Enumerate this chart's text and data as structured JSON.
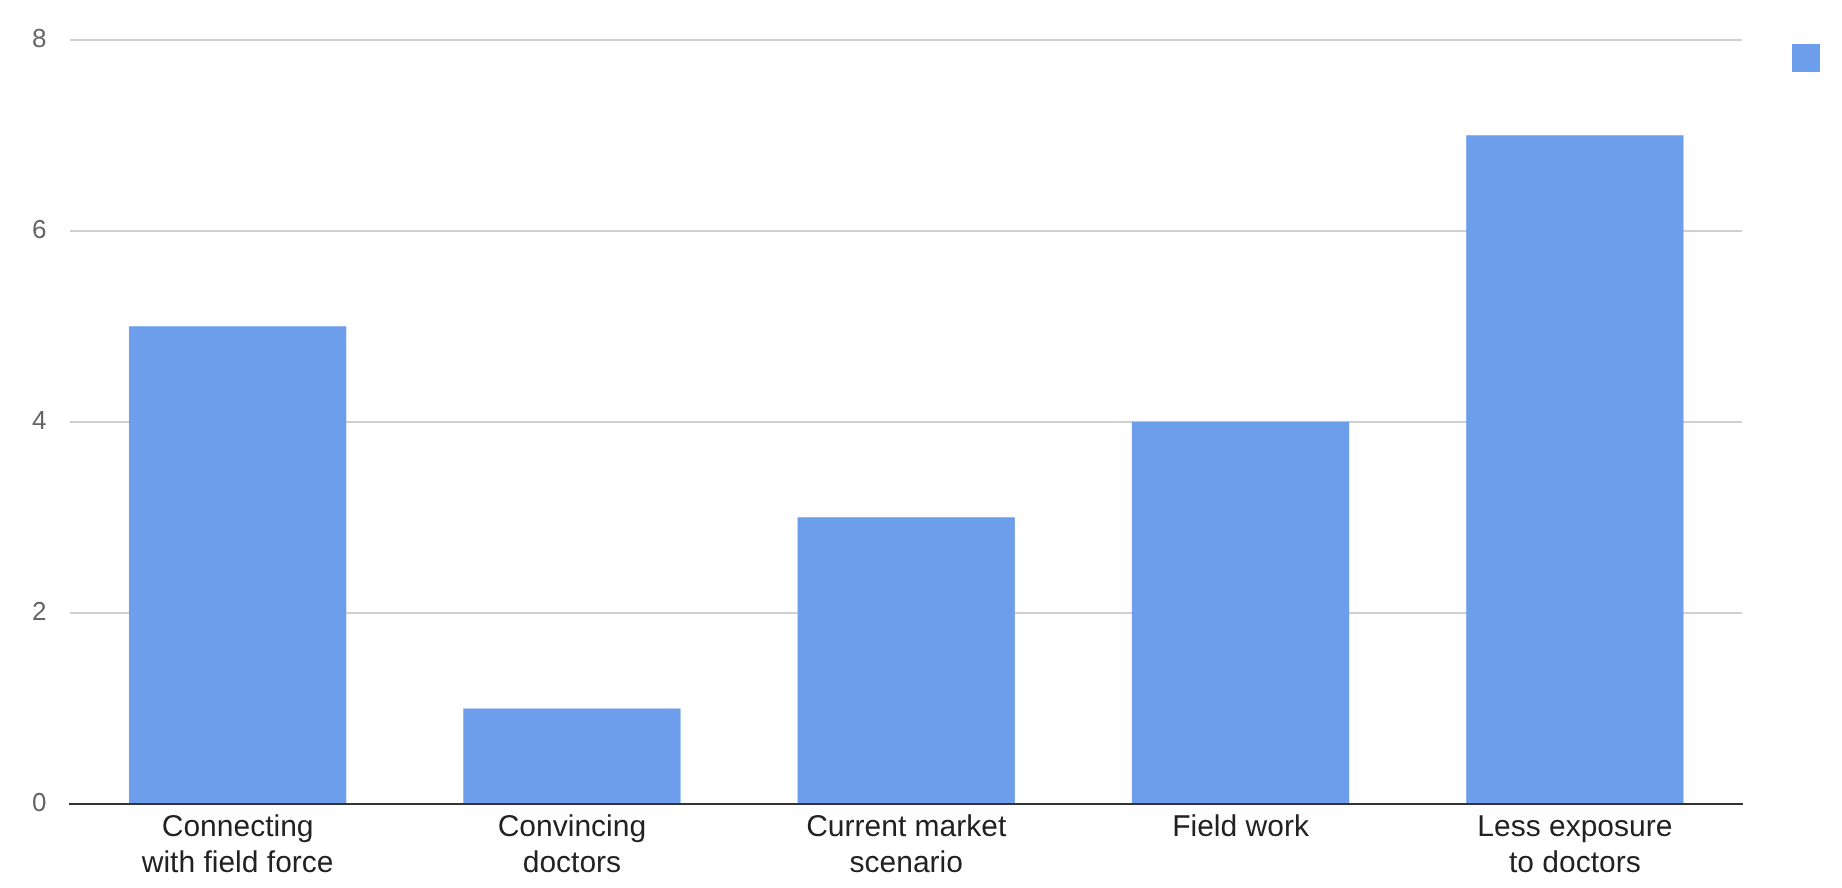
{
  "chart_data": {
    "type": "bar",
    "categories": [
      "Connecting with field force",
      "Convincing doctors",
      "Current market scenario",
      "Field work",
      "Less exposure to doctors"
    ],
    "series": [
      {
        "color": "#6d9eeb",
        "values": [
          5,
          1,
          3,
          4,
          7
        ]
      }
    ],
    "ylim": [
      0,
      8
    ],
    "yticks": [
      0,
      2,
      4,
      6,
      8
    ],
    "grid": "y"
  }
}
